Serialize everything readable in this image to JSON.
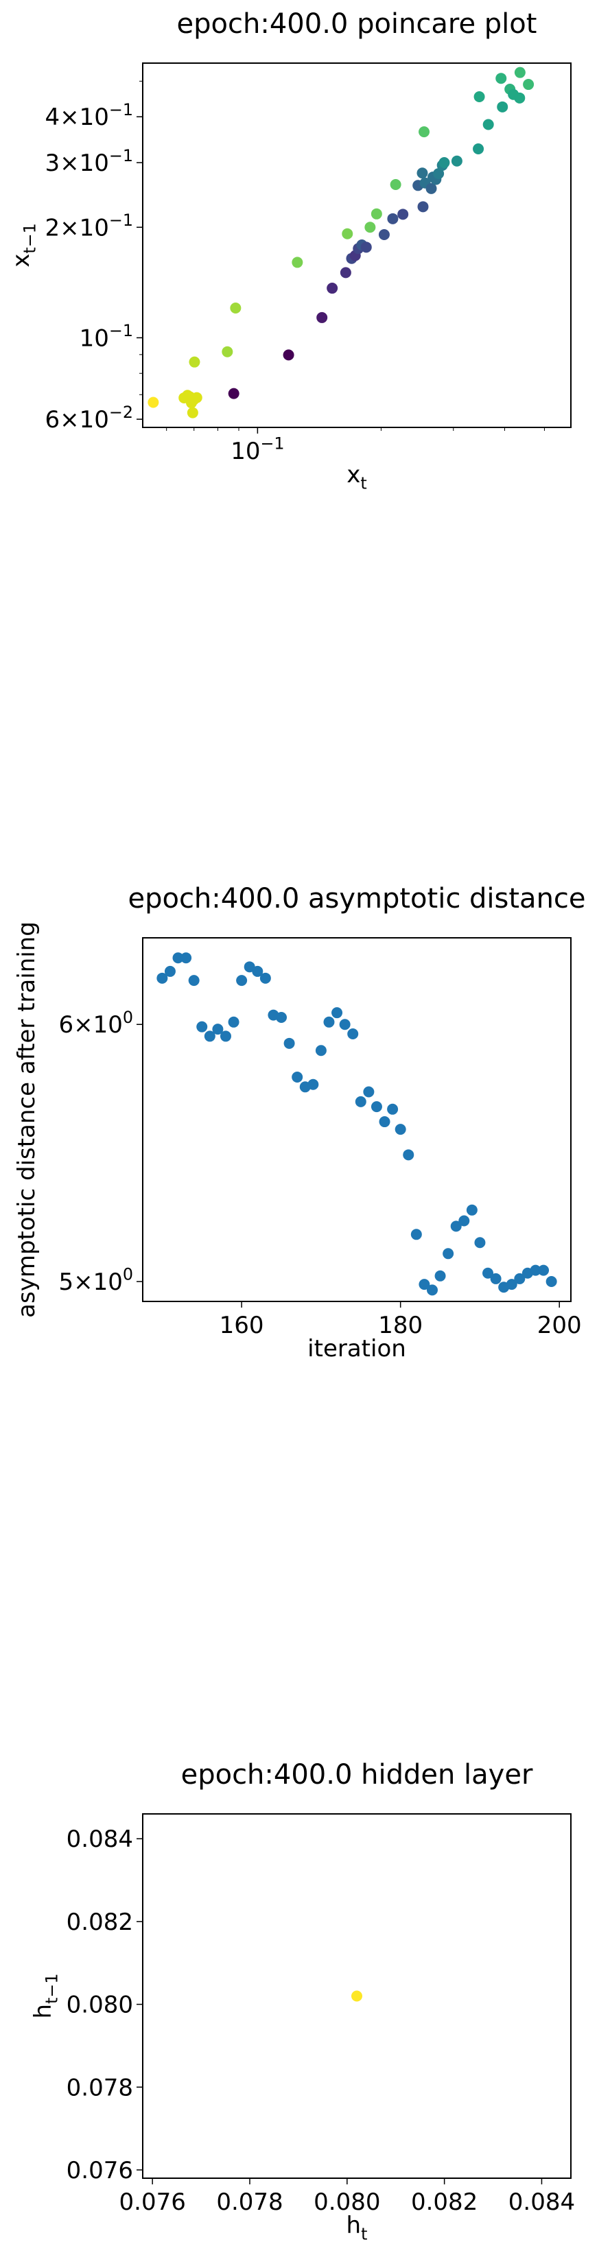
{
  "chart_data": [
    {
      "type": "scatter",
      "title": "epoch:400.0 poincare plot",
      "xlabel": "x_t",
      "ylabel": "x_{t-1}",
      "xscale": "log",
      "yscale": "log",
      "xlim": [
        0.0525,
        0.58
      ],
      "ylim": [
        0.057,
        0.56
      ],
      "grid": false,
      "colormap": "viridis",
      "xticks": [
        {
          "value": 0.1,
          "label": "10^{-1}"
        }
      ],
      "yticks": [
        {
          "value": 0.06,
          "label": "6×10^{-2}"
        },
        {
          "value": 0.1,
          "label": "10^{-1}"
        },
        {
          "value": 0.2,
          "label": "2×10^{-1}"
        },
        {
          "value": 0.3,
          "label": "3×10^{-1}"
        },
        {
          "value": 0.4,
          "label": "4×10^{-1}"
        }
      ],
      "points": [
        {
          "x": 0.0557,
          "y": 0.0667,
          "color": "#fde725"
        },
        {
          "x": 0.0662,
          "y": 0.0686,
          "color": "#dde318"
        },
        {
          "x": 0.0675,
          "y": 0.0697,
          "color": "#dde318"
        },
        {
          "x": 0.0685,
          "y": 0.069,
          "color": "#dde318"
        },
        {
          "x": 0.069,
          "y": 0.0665,
          "color": "#dde318"
        },
        {
          "x": 0.0699,
          "y": 0.0678,
          "color": "#dde318"
        },
        {
          "x": 0.0711,
          "y": 0.0687,
          "color": "#dde318"
        },
        {
          "x": 0.0695,
          "y": 0.0625,
          "color": "#dde318"
        },
        {
          "x": 0.0702,
          "y": 0.0859,
          "color": "#bddf26"
        },
        {
          "x": 0.0844,
          "y": 0.0916,
          "color": "#a0da39"
        },
        {
          "x": 0.0884,
          "y": 0.1205,
          "color": "#a0da39"
        },
        {
          "x": 0.0875,
          "y": 0.0705,
          "color": "#440154"
        },
        {
          "x": 0.119,
          "y": 0.0898,
          "color": "#440154"
        },
        {
          "x": 0.125,
          "y": 0.1605,
          "color": "#7ad151"
        },
        {
          "x": 0.1435,
          "y": 0.1135,
          "color": "#481a6c"
        },
        {
          "x": 0.152,
          "y": 0.1365,
          "color": "#472a7a"
        },
        {
          "x": 0.164,
          "y": 0.1505,
          "color": "#46327e"
        },
        {
          "x": 0.1655,
          "y": 0.192,
          "color": "#7ad151"
        },
        {
          "x": 0.1695,
          "y": 0.1645,
          "color": "#3e4989"
        },
        {
          "x": 0.173,
          "y": 0.1675,
          "color": "#453781"
        },
        {
          "x": 0.176,
          "y": 0.175,
          "color": "#404688"
        },
        {
          "x": 0.1795,
          "y": 0.179,
          "color": "#38588c"
        },
        {
          "x": 0.184,
          "y": 0.1765,
          "color": "#3e4989"
        },
        {
          "x": 0.188,
          "y": 0.2,
          "color": "#6ccd5a"
        },
        {
          "x": 0.195,
          "y": 0.2175,
          "color": "#6ccd5a"
        },
        {
          "x": 0.2035,
          "y": 0.191,
          "color": "#3b528b"
        },
        {
          "x": 0.2135,
          "y": 0.211,
          "color": "#3b528b"
        },
        {
          "x": 0.217,
          "y": 0.2615,
          "color": "#5ec962"
        },
        {
          "x": 0.226,
          "y": 0.217,
          "color": "#3e4989"
        },
        {
          "x": 0.246,
          "y": 0.26,
          "color": "#355f8d"
        },
        {
          "x": 0.252,
          "y": 0.281,
          "color": "#2c728e"
        },
        {
          "x": 0.253,
          "y": 0.2275,
          "color": "#3b528b"
        },
        {
          "x": 0.2545,
          "y": 0.364,
          "color": "#54c568"
        },
        {
          "x": 0.256,
          "y": 0.264,
          "color": "#2c728e"
        },
        {
          "x": 0.265,
          "y": 0.255,
          "color": "#33638d"
        },
        {
          "x": 0.2675,
          "y": 0.274,
          "color": "#2c728e"
        },
        {
          "x": 0.272,
          "y": 0.27,
          "color": "#2c728e"
        },
        {
          "x": 0.276,
          "y": 0.28,
          "color": "#287d8e"
        },
        {
          "x": 0.282,
          "y": 0.295,
          "color": "#26828e"
        },
        {
          "x": 0.285,
          "y": 0.3,
          "color": "#21918c"
        },
        {
          "x": 0.306,
          "y": 0.303,
          "color": "#21918c"
        },
        {
          "x": 0.345,
          "y": 0.327,
          "color": "#1e9b8a"
        },
        {
          "x": 0.347,
          "y": 0.4535,
          "color": "#22a884"
        },
        {
          "x": 0.365,
          "y": 0.381,
          "color": "#1fa187"
        },
        {
          "x": 0.395,
          "y": 0.4255,
          "color": "#1fa187"
        },
        {
          "x": 0.392,
          "y": 0.509,
          "color": "#2db27d"
        },
        {
          "x": 0.412,
          "y": 0.4755,
          "color": "#2db27d"
        },
        {
          "x": 0.42,
          "y": 0.46,
          "color": "#22a884"
        },
        {
          "x": 0.435,
          "y": 0.45,
          "color": "#22a884"
        },
        {
          "x": 0.436,
          "y": 0.528,
          "color": "#3bbb75"
        },
        {
          "x": 0.457,
          "y": 0.49,
          "color": "#3bbb75"
        }
      ]
    },
    {
      "type": "scatter",
      "title": "epoch:400.0 asymptotic distance",
      "xlabel": "iteration",
      "ylabel": "asymptotic distance after training",
      "yscale": "log",
      "xlim": [
        147.55,
        201.45
      ],
      "ylim": [
        4.93,
        6.38
      ],
      "grid": false,
      "color": "#1f77b4",
      "xticks": [
        {
          "value": 160,
          "label": "160"
        },
        {
          "value": 180,
          "label": "180"
        },
        {
          "value": 200,
          "label": "200"
        }
      ],
      "yticks": [
        {
          "value": 5,
          "label": "5×10^0"
        },
        {
          "value": 6,
          "label": "6×10^0"
        }
      ],
      "x": [
        150,
        151,
        152,
        153,
        154,
        155,
        156,
        157,
        158,
        159,
        160,
        161,
        162,
        163,
        164,
        165,
        166,
        167,
        168,
        169,
        170,
        171,
        172,
        173,
        174,
        175,
        176,
        177,
        178,
        179,
        180,
        181,
        182,
        183,
        184,
        185,
        186,
        187,
        188,
        189,
        190,
        191,
        192,
        193,
        194,
        195,
        196,
        197,
        198,
        199
      ],
      "y": [
        6.2,
        6.23,
        6.29,
        6.29,
        6.19,
        5.99,
        5.95,
        5.98,
        5.95,
        6.01,
        6.19,
        6.25,
        6.23,
        6.2,
        6.04,
        6.03,
        5.92,
        5.78,
        5.74,
        5.75,
        5.89,
        6.01,
        6.05,
        6.0,
        5.96,
        5.68,
        5.72,
        5.66,
        5.6,
        5.65,
        5.57,
        5.47,
        5.17,
        4.99,
        4.97,
        5.02,
        5.1,
        5.2,
        5.22,
        5.26,
        5.14,
        5.03,
        5.01,
        4.98,
        4.99,
        5.01,
        5.03,
        5.04,
        5.04,
        5.0
      ]
    },
    {
      "type": "scatter",
      "title": "epoch:400.0 hidden layer",
      "xlabel": "h_t",
      "ylabel": "h_{t-1}",
      "xlim": [
        0.0758,
        0.0846
      ],
      "ylim": [
        0.0758,
        0.0846
      ],
      "grid": false,
      "xticks": [
        {
          "value": 0.076,
          "label": "0.076"
        },
        {
          "value": 0.078,
          "label": "0.078"
        },
        {
          "value": 0.08,
          "label": "0.080"
        },
        {
          "value": 0.082,
          "label": "0.082"
        },
        {
          "value": 0.084,
          "label": "0.084"
        }
      ],
      "yticks": [
        {
          "value": 0.076,
          "label": "0.076"
        },
        {
          "value": 0.078,
          "label": "0.078"
        },
        {
          "value": 0.08,
          "label": "0.080"
        },
        {
          "value": 0.082,
          "label": "0.082"
        },
        {
          "value": 0.084,
          "label": "0.084"
        }
      ],
      "points": [
        {
          "x": 0.0802,
          "y": 0.0802,
          "color": "#fde725"
        }
      ]
    }
  ]
}
